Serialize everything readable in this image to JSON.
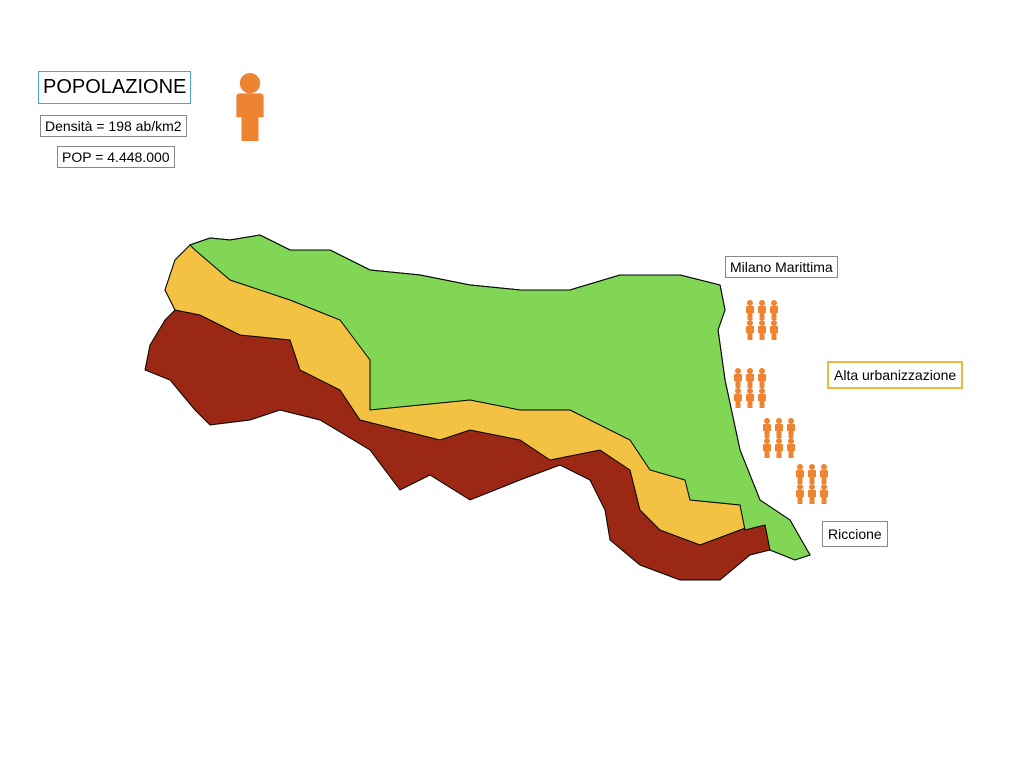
{
  "header": {
    "title": "POPOLAZIONE",
    "density": "Densità = 198 ab/km2",
    "population": "POP = 4.448.000"
  },
  "labels": {
    "north": "Milano Marittima",
    "coast": "Alta urbanizzazione",
    "south": "Riccione"
  }
}
